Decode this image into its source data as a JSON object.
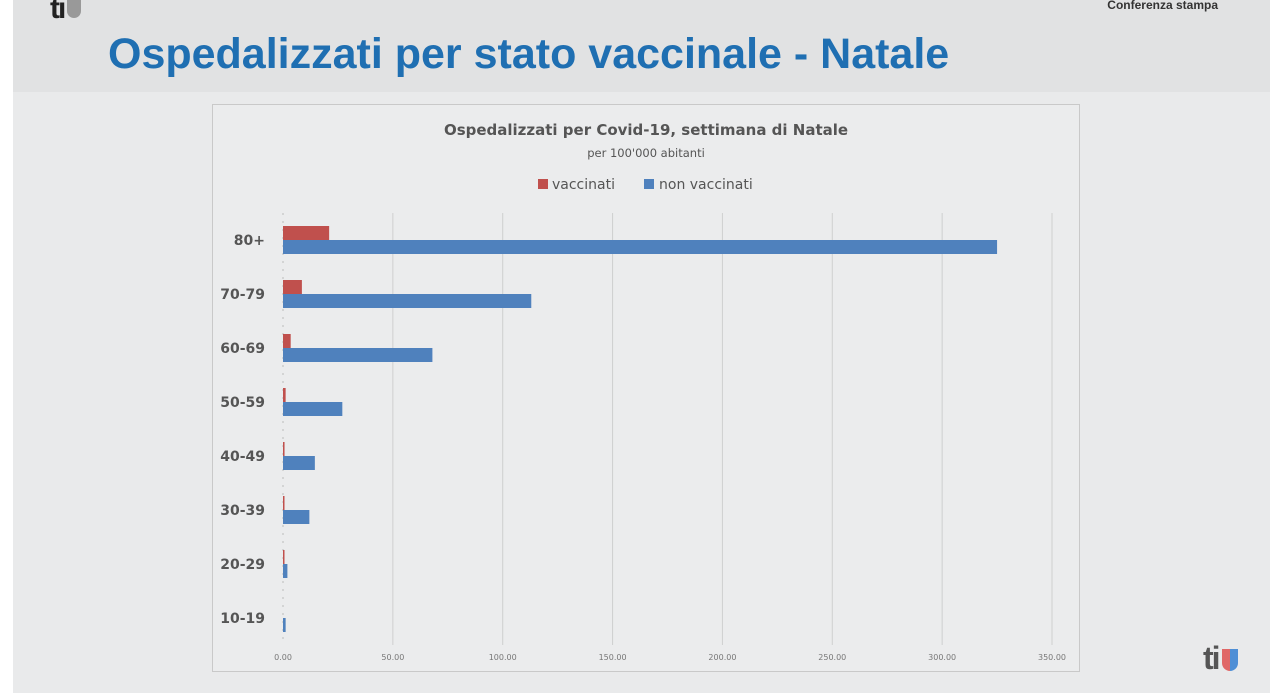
{
  "header": {
    "logo_text": "ti",
    "conference_label": "Conferenza stampa",
    "slide_title": "Ospedalizzati per stato vaccinale - Natale"
  },
  "footer": {
    "logo_text": "ti"
  },
  "chart_data": {
    "type": "bar",
    "orientation": "horizontal",
    "title": "Ospedalizzati per Covid-19, settimana di Natale",
    "subtitle": "per 100'000 abitanti",
    "categories": [
      "80+",
      "70-79",
      "60-69",
      "50-59",
      "40-49",
      "30-39",
      "20-29",
      "10-19"
    ],
    "series": [
      {
        "name": "vaccinati",
        "color": "#c0504d",
        "values": [
          21,
          8.6,
          3.5,
          1.2,
          0.7,
          0.3,
          0.6,
          0
        ]
      },
      {
        "name": "non vaccinati",
        "color": "#4f81bd",
        "values": [
          325,
          113,
          68,
          27,
          14.5,
          12,
          2,
          1.2
        ]
      }
    ],
    "xlim": [
      0,
      350
    ],
    "xticks": [
      "0.00",
      "50.00",
      "100.00",
      "150.00",
      "200.00",
      "250.00",
      "300.00",
      "350.00"
    ],
    "xtick_values": [
      0,
      50,
      100,
      150,
      200,
      250,
      300,
      350
    ],
    "grid": true,
    "legend_position": "top-center",
    "xlabel": "",
    "ylabel": ""
  }
}
